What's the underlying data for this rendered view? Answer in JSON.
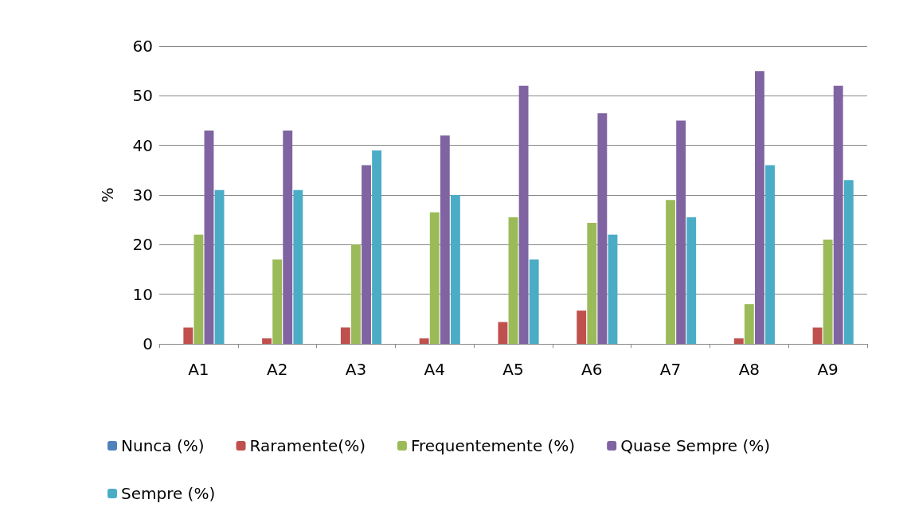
{
  "chart_data": {
    "type": "bar",
    "ylabel": "%",
    "categories": [
      "A1",
      "A2",
      "A3",
      "A4",
      "A5",
      "A6",
      "A7",
      "A8",
      "A9"
    ],
    "series": [
      {
        "name": "Nunca (%)",
        "color": "#4f81bd",
        "values": [
          0,
          0,
          0,
          0,
          0,
          0,
          0,
          0,
          0
        ]
      },
      {
        "name": "Raramente(%)",
        "color": "#c0504d",
        "values": [
          3.3,
          1.1,
          3.3,
          1.1,
          4.4,
          6.7,
          0,
          1.1,
          3.3
        ]
      },
      {
        "name": "Frequentemente (%)",
        "color": "#9bbb59",
        "values": [
          22,
          17,
          20,
          26.5,
          25.5,
          24.4,
          29,
          8,
          21
        ]
      },
      {
        "name": "Quase Sempre (%)",
        "color": "#8064a2",
        "values": [
          43,
          43,
          36,
          42,
          52,
          46.5,
          45,
          55,
          52
        ]
      },
      {
        "name": "Sempre (%)",
        "color": "#4bacc6",
        "values": [
          31,
          31,
          39,
          30,
          17,
          22,
          25.5,
          36,
          33
        ]
      }
    ],
    "ylim": [
      0,
      60
    ],
    "yticks": [
      0,
      10,
      20,
      30,
      40,
      50,
      60
    ],
    "grid": "y",
    "legend": "bottom"
  }
}
